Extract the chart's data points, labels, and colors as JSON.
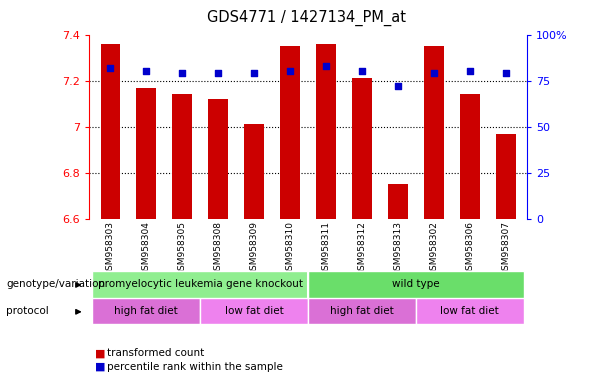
{
  "title": "GDS4771 / 1427134_PM_at",
  "samples": [
    "GSM958303",
    "GSM958304",
    "GSM958305",
    "GSM958308",
    "GSM958309",
    "GSM958310",
    "GSM958311",
    "GSM958312",
    "GSM958313",
    "GSM958302",
    "GSM958306",
    "GSM958307"
  ],
  "red_values": [
    7.36,
    7.17,
    7.14,
    7.12,
    7.01,
    7.35,
    7.36,
    7.21,
    6.75,
    7.35,
    7.14,
    6.97
  ],
  "blue_values": [
    82,
    80,
    79,
    79,
    79,
    80,
    83,
    80,
    72,
    79,
    80,
    79
  ],
  "ylim_left": [
    6.6,
    7.4
  ],
  "ylim_right": [
    0,
    100
  ],
  "yticks_left": [
    6.6,
    6.8,
    7.0,
    7.2,
    7.4
  ],
  "ytick_labels_left": [
    "6.6",
    "6.8",
    "7",
    "7.2",
    "7.4"
  ],
  "ytick_labels_right": [
    "0",
    "25",
    "50",
    "75",
    "100%"
  ],
  "bar_color": "#cc0000",
  "dot_color": "#0000cc",
  "bar_base": 6.6,
  "genotype_labels": [
    "promyelocytic leukemia gene knockout",
    "wild type"
  ],
  "genotype_color": "#90EE90",
  "protocol_labels": [
    "high fat diet",
    "low fat diet",
    "high fat diet",
    "low fat diet"
  ],
  "protocol_color_odd": "#DA70D6",
  "protocol_color_even": "#DA70D6",
  "legend_labels": [
    "transformed count",
    "percentile rank within the sample"
  ],
  "legend_colors": [
    "#cc0000",
    "#0000cc"
  ],
  "label_left_text": [
    "genotype/variation",
    "protocol"
  ],
  "gray_bg": "#d3d3d3",
  "chart_bg": "#ffffff"
}
